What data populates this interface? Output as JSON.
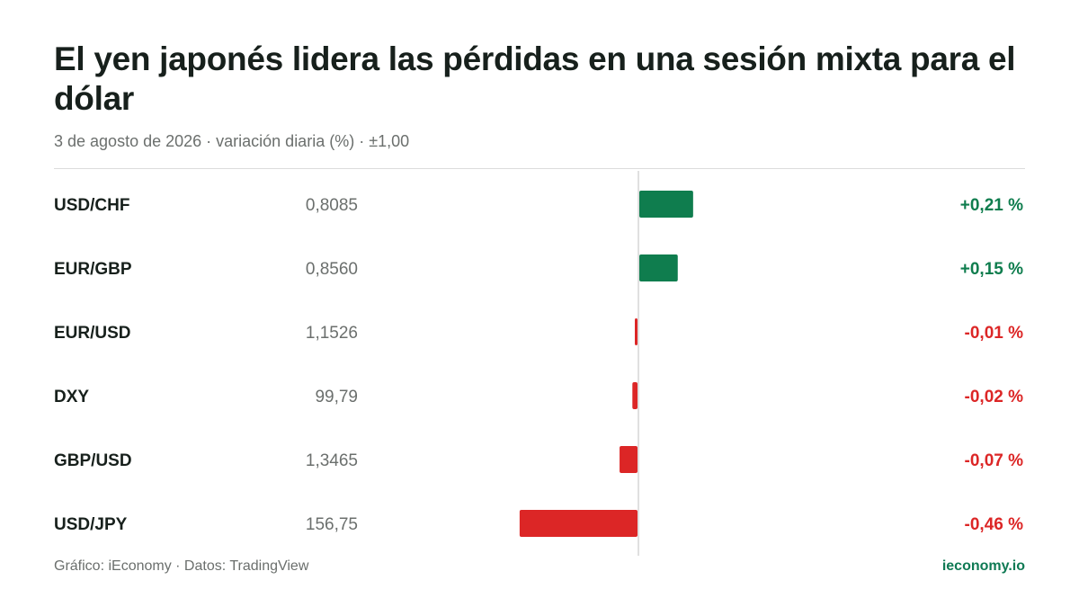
{
  "title": "El yen japonés lidera las pérdidas en una sesión mixta para el dólar",
  "subtitle": "3 de agosto de 2026 · variación diaria (%) · ±1,00",
  "footer": {
    "source": "Gráfico: iEconomy · Datos: TradingView",
    "brand": "ieconomy.io"
  },
  "colors": {
    "positive": "#0f7d4e",
    "negative": "#dc2626",
    "axis": "#d6d6d6"
  },
  "chart_data": {
    "type": "bar",
    "orientation": "horizontal",
    "xlim": [
      -1,
      1
    ],
    "rows": [
      {
        "label": "USD/CHF",
        "price": "0,8085",
        "change": 0.21,
        "change_label": "+0,21 %"
      },
      {
        "label": "EUR/GBP",
        "price": "0,8560",
        "change": 0.15,
        "change_label": "+0,15 %"
      },
      {
        "label": "EUR/USD",
        "price": "1,1526",
        "change": -0.01,
        "change_label": "-0,01 %"
      },
      {
        "label": "DXY",
        "price": "99,79",
        "change": -0.02,
        "change_label": "-0,02 %"
      },
      {
        "label": "GBP/USD",
        "price": "1,3465",
        "change": -0.07,
        "change_label": "-0,07 %"
      },
      {
        "label": "USD/JPY",
        "price": "156,75",
        "change": -0.46,
        "change_label": "-0,46 %"
      }
    ]
  }
}
